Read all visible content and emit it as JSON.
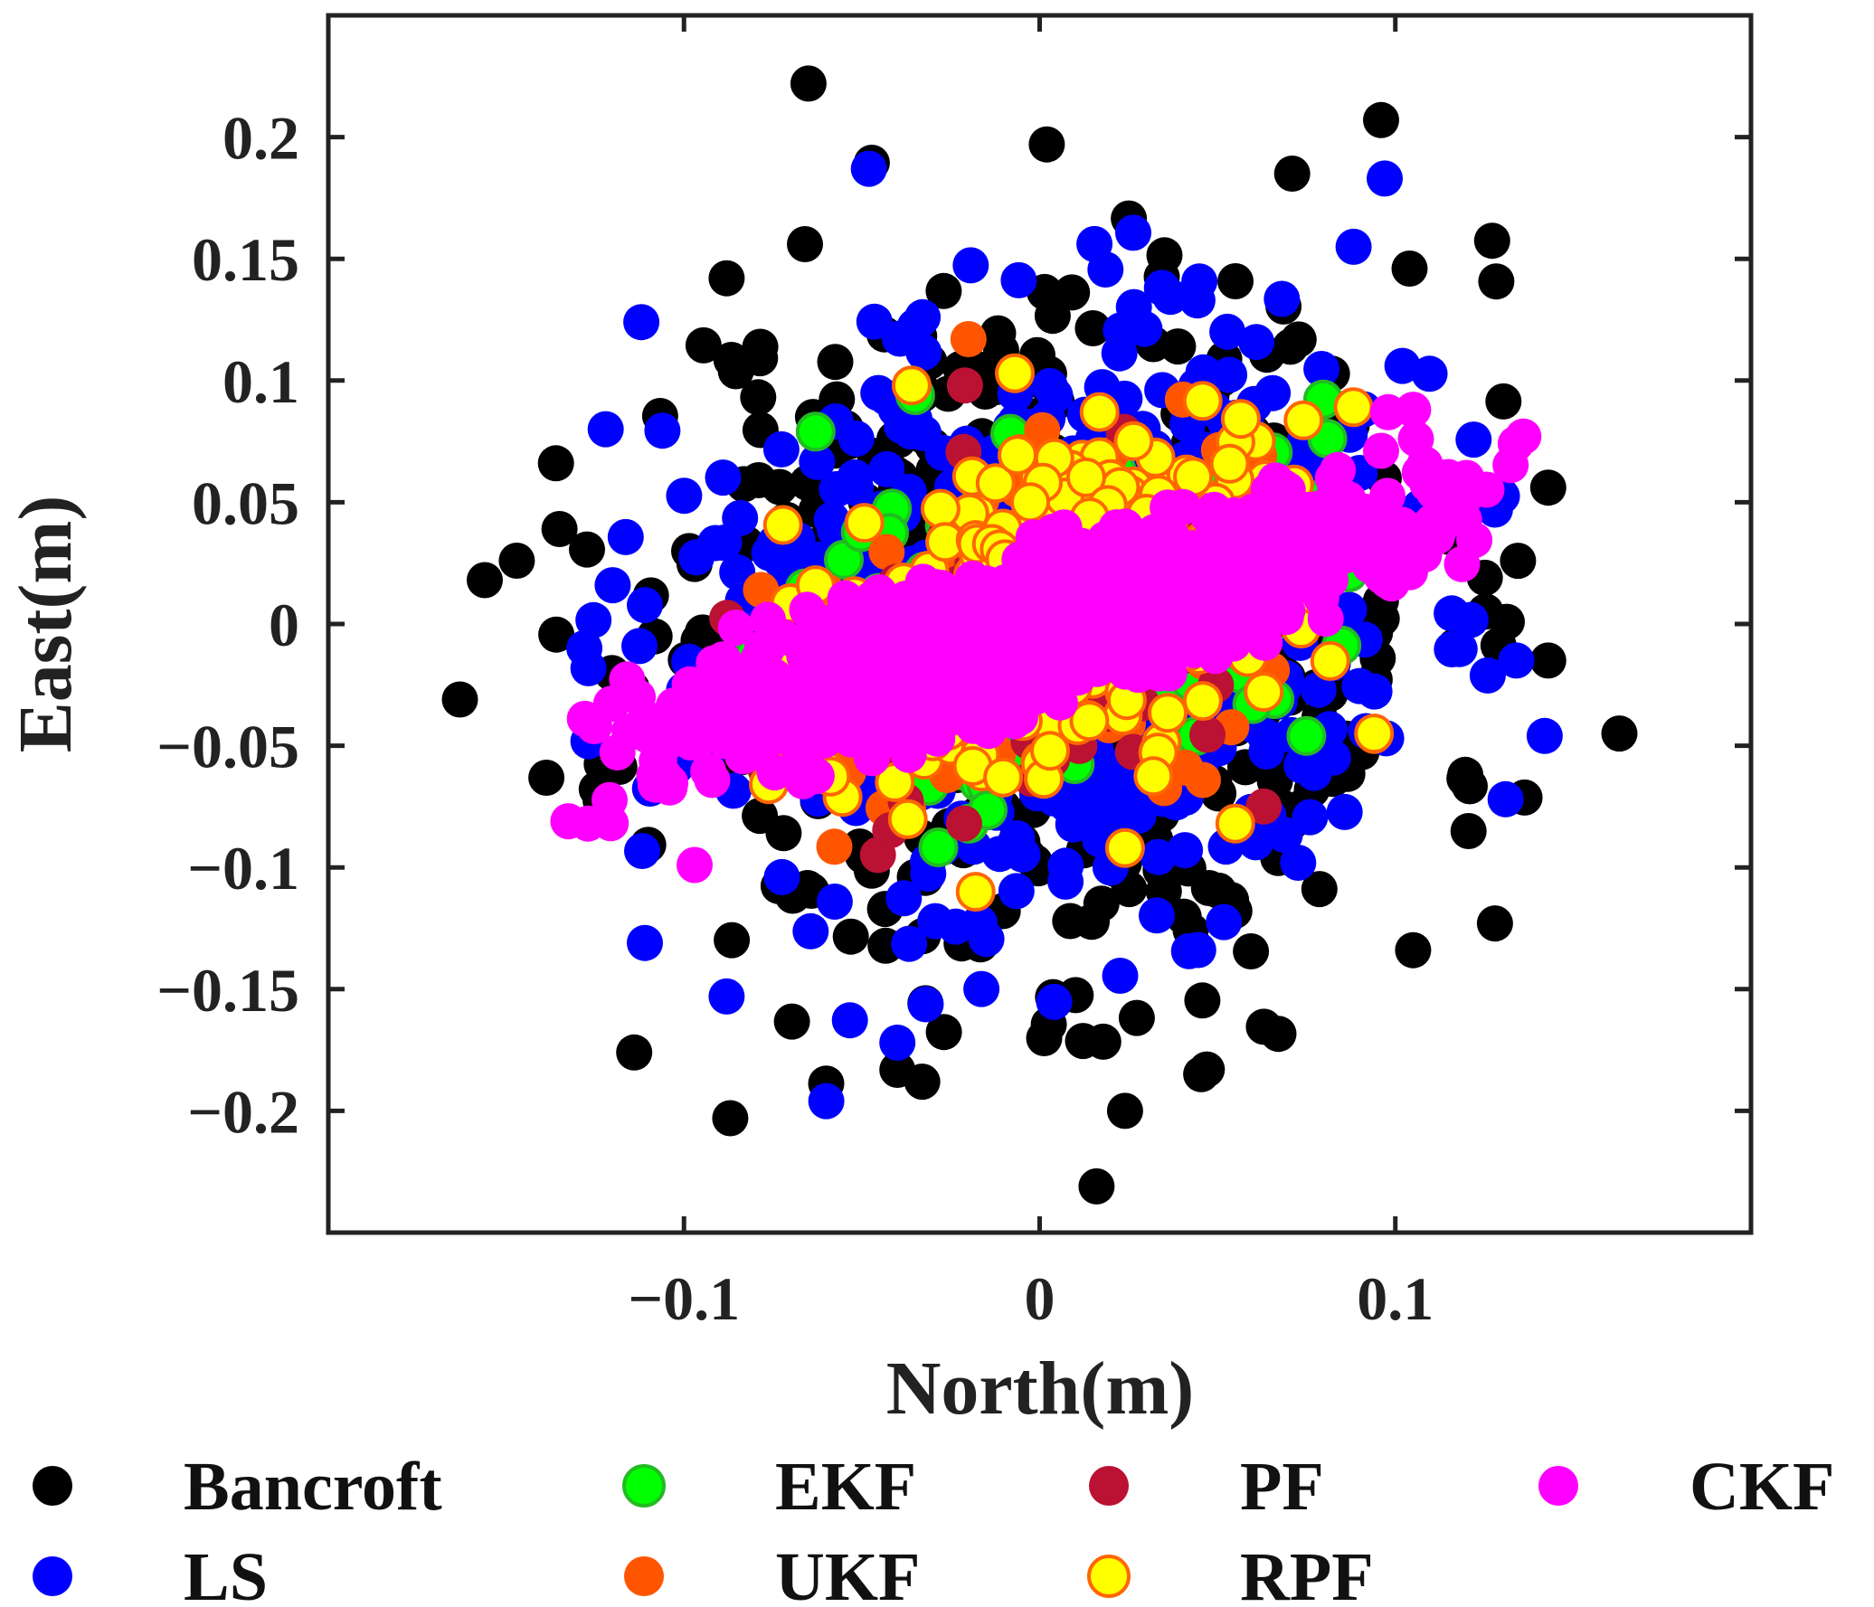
{
  "chart_data": {
    "type": "scatter",
    "title": "",
    "xlabel": "North(m)",
    "ylabel": "East(m)",
    "xlim": [
      -0.2,
      0.2
    ],
    "ylim": [
      -0.25,
      0.25
    ],
    "xticks": [
      -0.1,
      0,
      0.1
    ],
    "xtick_labels": [
      "−0.1",
      "0",
      "0.1"
    ],
    "yticks": [
      0.2,
      0.15,
      0.1,
      0.05,
      0,
      -0.05,
      -0.1,
      -0.15,
      -0.2
    ],
    "ytick_labels": [
      "0.2",
      "0.15",
      "0.1",
      "0.05",
      "0",
      "−0.05",
      "−0.1",
      "−0.15",
      "−0.2"
    ],
    "grid": false,
    "legend_position": "bottom",
    "series": [
      {
        "name": "Bancroft",
        "color": "#000000",
        "edge": "#000000",
        "cloud": {
          "count": 520,
          "sx": 0.055,
          "sy": 0.075,
          "rho": 0.05,
          "seed": 11
        },
        "outliers": [
          [
            -0.065,
            0.222
          ],
          [
            0.096,
            0.207
          ],
          [
            0.002,
            0.197
          ],
          [
            0.143,
            0.056
          ],
          [
            0.163,
            -0.045
          ],
          [
            -0.163,
            -0.031
          ],
          [
            -0.156,
            0.018
          ],
          [
            -0.147,
            0.026
          ],
          [
            -0.136,
            0.066
          ],
          [
            -0.135,
            0.039
          ],
          [
            0.128,
            -0.123
          ],
          [
            -0.114,
            -0.176
          ],
          [
            -0.087,
            -0.203
          ],
          [
            0.024,
            -0.2
          ],
          [
            0.016,
            -0.231
          ],
          [
            -0.033,
            -0.188
          ],
          [
            0.047,
            -0.183
          ],
          [
            0.143,
            -0.015
          ],
          [
            0.105,
            -0.134
          ],
          [
            0.104,
            0.146
          ],
          [
            0.071,
            0.185
          ],
          [
            -0.088,
            0.142
          ],
          [
            -0.066,
            0.156
          ]
        ]
      },
      {
        "name": "LS",
        "color": "#0000ff",
        "edge": "#0000ff",
        "cloud": {
          "count": 620,
          "sx": 0.05,
          "sy": 0.062,
          "rho": 0.08,
          "seed": 23
        },
        "outliers": [
          [
            -0.048,
            0.187
          ],
          [
            0.097,
            0.183
          ],
          [
            0.142,
            -0.046
          ],
          [
            -0.06,
            -0.196
          ],
          [
            0.131,
            -0.072
          ],
          [
            -0.111,
            -0.131
          ],
          [
            -0.088,
            -0.153
          ],
          [
            -0.04,
            -0.172
          ],
          [
            0.128,
            0.047
          ],
          [
            -0.128,
            -0.01
          ],
          [
            -0.122,
            0.08
          ],
          [
            -0.112,
            0.124
          ],
          [
            0.134,
            -0.015
          ],
          [
            0.102,
            0.106
          ]
        ]
      },
      {
        "name": "EKF",
        "color": "#00ff00",
        "edge": "#22bb22",
        "cloud": {
          "count": 170,
          "sx": 0.038,
          "sy": 0.037,
          "rho": 0.42,
          "seed": 37
        },
        "outliers": [
          [
            -0.063,
            0.079
          ],
          [
            0.075,
            -0.046
          ],
          [
            -0.035,
            0.094
          ]
        ]
      },
      {
        "name": "UKF",
        "color": "#ff5500",
        "edge": "#ff5500",
        "cloud": {
          "count": 150,
          "sx": 0.036,
          "sy": 0.036,
          "rho": 0.42,
          "seed": 41
        },
        "outliers": [
          [
            0.094,
            -0.046
          ],
          [
            -0.02,
            0.117
          ],
          [
            0.055,
            -0.082
          ]
        ]
      },
      {
        "name": "PF",
        "color": "#bb1133",
        "edge": "#bb1133",
        "cloud": {
          "count": 130,
          "sx": 0.035,
          "sy": 0.035,
          "rho": 0.42,
          "seed": 53
        },
        "outliers": [
          [
            -0.021,
            0.098
          ],
          [
            0.063,
            -0.075
          ]
        ]
      },
      {
        "name": "RPF",
        "color": "#ffff00",
        "edge": "#ff6600",
        "cloud": {
          "count": 380,
          "sx": 0.035,
          "sy": 0.035,
          "rho": 0.45,
          "seed": 67
        },
        "outliers": [
          [
            -0.036,
            0.098
          ],
          [
            0.094,
            -0.045
          ],
          [
            -0.018,
            -0.11
          ],
          [
            0.055,
            -0.082
          ],
          [
            -0.007,
            0.103
          ],
          [
            0.024,
            -0.092
          ]
        ]
      },
      {
        "name": "CKF",
        "color": "#ff00ff",
        "edge": "#ff00ff",
        "cloud": {
          "count": 1100,
          "sx": 0.052,
          "sy": 0.026,
          "rho": 0.82,
          "seed": 79
        },
        "outliers": [
          [
            -0.127,
            -0.082
          ],
          [
            0.136,
            0.077
          ],
          [
            -0.097,
            -0.099
          ],
          [
            -0.113,
            -0.03
          ],
          [
            0.098,
            0.087
          ],
          [
            0.12,
            0.06
          ],
          [
            -0.108,
            -0.066
          ],
          [
            0.105,
            0.088
          ]
        ]
      }
    ]
  }
}
